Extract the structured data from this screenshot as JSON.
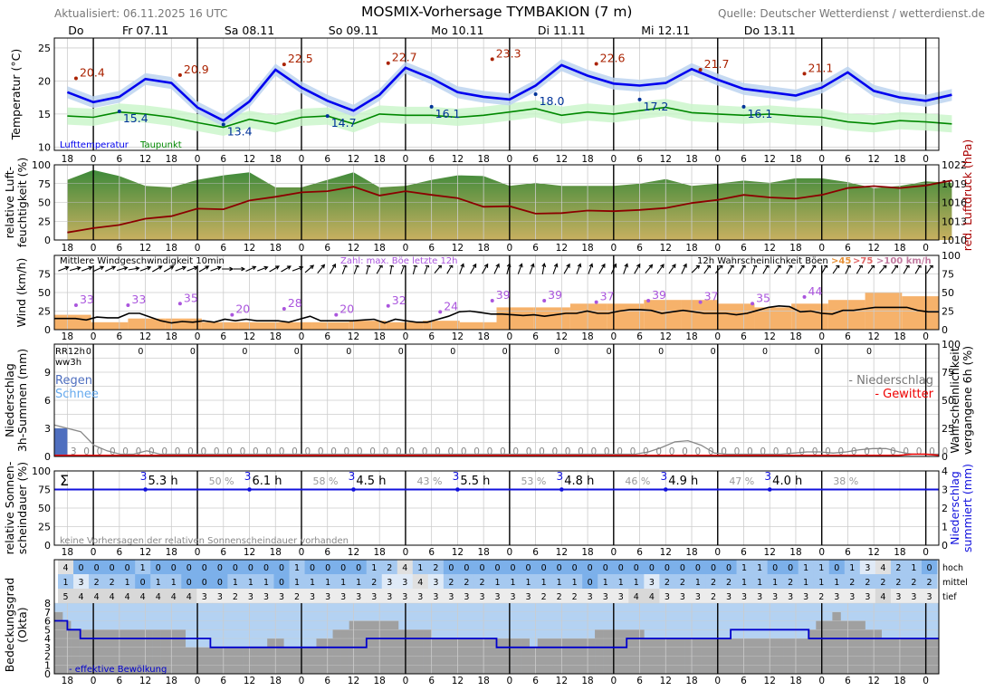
{
  "header": {
    "updated": "Aktualisiert: 06.11.2025 16 UTC",
    "title": "MOSMIX-Vorhersage TYMBAKION (7 m)",
    "source": "Quelle: Deutscher Wetterdienst / wetterdienst.de"
  },
  "days": [
    "Do",
    "Fr 07.11",
    "Sa 08.11",
    "So 09.11",
    "Mo 10.11",
    "Di 11.11",
    "Mi 12.11",
    "Do 13.11"
  ],
  "hour_ticks": [
    "18",
    "0",
    "6",
    "12",
    "18",
    "0",
    "6",
    "12",
    "18",
    "0",
    "6",
    "12",
    "18",
    "0",
    "6",
    "12",
    "18",
    "0",
    "6",
    "12",
    "18",
    "0",
    "6",
    "12",
    "18",
    "0",
    "6",
    "12",
    "18",
    "0",
    "6",
    "12",
    "18",
    "0"
  ],
  "colors": {
    "temperature": "#0000ee",
    "dewpoint": "#008800",
    "pressure": "#8b0000",
    "gust_label": "#aa55dd",
    "max_label": "#aa2200",
    "min_label": "#003399",
    "rain": "#4f6fbf",
    "snow": "#66aaee",
    "thunder": "#ee0000",
    "cloud_blue": "#b4d2f2",
    "cloud_gray": "#a0a0a0"
  },
  "chart_data": [
    {
      "type": "line",
      "panel": "temperature",
      "ylabel": "Temperatur (°C)",
      "yticks": [
        10,
        15,
        20,
        25
      ],
      "ylim": [
        9.5,
        26.5
      ],
      "x_hours": [
        -6,
        0,
        6,
        12,
        18,
        24,
        30,
        36,
        42,
        48,
        54,
        60,
        66,
        72,
        78,
        84,
        90,
        96,
        102,
        108,
        114,
        120,
        126,
        132,
        138,
        144,
        150,
        156,
        162,
        168,
        174,
        180,
        186,
        192,
        198
      ],
      "legend": [
        "Lufttemperatur",
        "Taupunkt"
      ],
      "series": [
        {
          "name": "Lufttemperatur",
          "values": [
            18.3,
            16.8,
            17.6,
            20.3,
            19.7,
            16.0,
            14.0,
            16.9,
            21.7,
            19.0,
            17.0,
            15.5,
            17.9,
            22.0,
            20.4,
            18.3,
            17.6,
            17.2,
            19.3,
            22.4,
            20.8,
            19.6,
            19.3,
            19.7,
            21.8,
            20.2,
            18.8,
            18.3,
            17.8,
            19.0,
            21.3,
            18.5,
            17.5,
            17.0,
            17.9
          ]
        },
        {
          "name": "Taupunkt",
          "values": [
            14.7,
            14.5,
            15.3,
            15.0,
            14.5,
            13.7,
            13.0,
            14.2,
            13.5,
            14.5,
            14.7,
            13.5,
            15.0,
            14.8,
            14.8,
            14.5,
            14.8,
            15.3,
            15.8,
            14.8,
            15.3,
            15.0,
            15.5,
            16.0,
            15.2,
            15.0,
            14.8,
            15.0,
            14.7,
            14.5,
            13.8,
            13.5,
            14.0,
            13.8,
            13.5
          ]
        }
      ],
      "annotations": [
        {
          "x": -4,
          "y": 20.4,
          "label": "20.4",
          "kind": "max"
        },
        {
          "x": 20,
          "y": 20.9,
          "label": "20.9",
          "kind": "max"
        },
        {
          "x": 44,
          "y": 22.5,
          "label": "22.5",
          "kind": "max"
        },
        {
          "x": 68,
          "y": 22.7,
          "label": "22.7",
          "kind": "max"
        },
        {
          "x": 92,
          "y": 23.3,
          "label": "23.3",
          "kind": "max"
        },
        {
          "x": 116,
          "y": 22.6,
          "label": "22.6",
          "kind": "max"
        },
        {
          "x": 140,
          "y": 21.7,
          "label": "21.7",
          "kind": "max"
        },
        {
          "x": 164,
          "y": 21.1,
          "label": "21.1",
          "kind": "max"
        },
        {
          "x": 6,
          "y": 15.4,
          "label": "15.4",
          "kind": "min"
        },
        {
          "x": 30,
          "y": 13.4,
          "label": "13.4",
          "kind": "min"
        },
        {
          "x": 54,
          "y": 14.7,
          "label": "14.7",
          "kind": "min"
        },
        {
          "x": 78,
          "y": 16.1,
          "label": "16.1",
          "kind": "min"
        },
        {
          "x": 102,
          "y": 18.0,
          "label": "18.0",
          "kind": "min"
        },
        {
          "x": 126,
          "y": 17.2,
          "label": "17.2",
          "kind": "min"
        },
        {
          "x": 150,
          "y": 16.1,
          "label": "16.1",
          "kind": "min"
        }
      ]
    },
    {
      "type": "area",
      "panel": "humidity_pressure",
      "ylabel": "relative Luft-\nfeuchtigkeit (%)",
      "y2label": "red. Luftdruck (hPa)",
      "yticks": [
        0,
        25,
        50,
        75,
        100
      ],
      "y2ticks": [
        1010,
        1013,
        1016,
        1019,
        1022
      ],
      "x_hours": [
        -6,
        0,
        6,
        12,
        18,
        24,
        30,
        36,
        42,
        48,
        54,
        60,
        66,
        72,
        78,
        84,
        90,
        96,
        102,
        108,
        114,
        120,
        126,
        132,
        138,
        144,
        150,
        156,
        162,
        168,
        174,
        180,
        186,
        192,
        198
      ],
      "series": [
        {
          "name": "relative Luftfeuchtigkeit",
          "values": [
            80,
            93,
            85,
            72,
            70,
            80,
            86,
            90,
            70,
            70,
            80,
            90,
            70,
            72,
            80,
            86,
            85,
            72,
            76,
            72,
            72,
            72,
            75,
            81,
            72,
            75,
            79,
            76,
            82,
            82,
            77,
            69,
            72,
            78,
            76
          ]
        },
        {
          "name": "red. Luftdruck",
          "values": [
            1011.2,
            1011.9,
            1012.4,
            1013.4,
            1013.8,
            1015.0,
            1014.9,
            1016.3,
            1016.9,
            1017.6,
            1017.8,
            1018.5,
            1017.1,
            1017.8,
            1017.2,
            1016.7,
            1015.3,
            1015.4,
            1014.2,
            1014.3,
            1014.7,
            1014.6,
            1014.8,
            1015.1,
            1015.9,
            1016.4,
            1017.2,
            1016.8,
            1016.6,
            1017.2,
            1018.3,
            1018.6,
            1018.3,
            1018.7,
            1019.5
          ]
        }
      ]
    },
    {
      "type": "bar",
      "panel": "wind",
      "ylabel": "Wind (km/h)",
      "yticks": [
        0,
        25,
        50,
        75
      ],
      "y2ticks": [
        0,
        25,
        50,
        75,
        100
      ],
      "ylim": [
        0,
        100
      ],
      "mean_wind_label": "Mittlere Windgeschwindigkeit 10min",
      "gust_note": "Zahl: max. Böe letzte 12h",
      "prob_label": "12h Wahrscheinlichkeit Böen",
      "thresholds": [
        ">45",
        ">75",
        ">100 km/h"
      ],
      "gust_max": [
        {
          "x": -4,
          "value": 33
        },
        {
          "x": 8,
          "value": 33
        },
        {
          "x": 20,
          "value": 35
        },
        {
          "x": 32,
          "value": 20
        },
        {
          "x": 44,
          "value": 28
        },
        {
          "x": 56,
          "value": 20
        },
        {
          "x": 68,
          "value": 32
        },
        {
          "x": 80,
          "value": 24
        },
        {
          "x": 92,
          "value": 39
        },
        {
          "x": 104,
          "value": 39
        },
        {
          "x": 116,
          "value": 37
        },
        {
          "x": 128,
          "value": 39
        },
        {
          "x": 140,
          "value": 37
        },
        {
          "x": 152,
          "value": 35
        },
        {
          "x": 164,
          "value": 44
        }
      ],
      "gust_prob_45": [
        20,
        10,
        15,
        15,
        10,
        10,
        10,
        10,
        12,
        10,
        12,
        10,
        30,
        30,
        35,
        35,
        40,
        40,
        35,
        30,
        35,
        40,
        50,
        45
      ],
      "mean_wind": [
        15,
        15,
        15,
        13,
        17,
        16,
        16,
        22,
        22,
        17,
        12,
        9,
        11,
        10,
        12,
        10,
        14,
        12,
        14,
        12,
        12,
        12,
        10,
        14,
        18,
        12,
        12,
        12,
        12,
        13,
        14,
        9,
        14,
        12,
        10,
        10,
        14,
        18,
        24,
        25,
        23,
        21,
        21,
        20,
        19,
        20,
        18,
        20,
        22,
        22,
        25,
        22,
        22,
        25,
        27,
        27,
        26,
        22,
        24,
        26,
        24,
        22,
        22,
        22,
        20,
        22,
        26,
        30,
        32,
        31,
        24,
        25,
        22,
        21,
        26,
        26,
        28,
        30,
        30,
        30,
        30,
        26,
        24,
        24
      ],
      "wind_dir": [
        250,
        255,
        250,
        245,
        245,
        255,
        260,
        250,
        240,
        240,
        250,
        250,
        240,
        250,
        270,
        270,
        245,
        250,
        240,
        240,
        250,
        230,
        220,
        210,
        200,
        200,
        195,
        210,
        190,
        200,
        195,
        200,
        220,
        210,
        200,
        210,
        210,
        205,
        195,
        200,
        200,
        190,
        200,
        210,
        200,
        200,
        210,
        205,
        200,
        210,
        220,
        215,
        215,
        205,
        225,
        215,
        220,
        210,
        210,
        200,
        210,
        215,
        210,
        215,
        210,
        210,
        215,
        205,
        210,
        215,
        220,
        215,
        210,
        210,
        215
      ]
    },
    {
      "type": "bar",
      "panel": "precipitation",
      "ylabel": "Niederschlag\n3h-Summen (mm)",
      "y2label": "Wahrscheinlichkeit\nvergangene 6h (%)",
      "yticks": [
        0,
        3,
        6,
        9
      ],
      "y2ticks": [
        0,
        25,
        50,
        75,
        100
      ],
      "labels": {
        "rr": "RR12h",
        "ww": "ww3h",
        "rain": "Regen",
        "snow": "Schnee",
        "precip": "- Niederschlag",
        "thunder": "- Gewitter"
      },
      "rr12": [
        "0",
        "0",
        "0",
        "0",
        "0",
        "0",
        "0",
        "0",
        "0",
        "0",
        "0",
        "0",
        "0",
        "0",
        "0",
        "0"
      ],
      "rr3": [
        3,
        0,
        0,
        0,
        0,
        0,
        0,
        0,
        0,
        0,
        0,
        0,
        0,
        0,
        0,
        0,
        0,
        0,
        0,
        0,
        0,
        0,
        0,
        0,
        0,
        0,
        0,
        0,
        0,
        0,
        0,
        0,
        0,
        0,
        0,
        0,
        0,
        0,
        0,
        0,
        0,
        0,
        0,
        0,
        0,
        0,
        0,
        0,
        0,
        0,
        0,
        0,
        0,
        0,
        0,
        0,
        0,
        0,
        0,
        0,
        0,
        0,
        0,
        0,
        0,
        0,
        0,
        0
      ],
      "prob_precip": [
        28,
        25,
        22,
        10,
        5,
        2,
        2,
        5,
        2,
        2,
        2,
        2,
        2,
        2,
        2,
        2,
        2,
        2,
        2,
        2,
        2,
        2,
        2,
        2,
        2,
        2,
        2,
        2,
        2,
        2,
        2,
        2,
        2,
        2,
        2,
        2,
        2,
        2,
        2,
        2,
        2,
        2,
        2,
        2,
        2,
        4,
        8,
        13,
        14,
        10,
        3,
        2,
        2,
        2,
        2,
        2,
        3,
        4,
        4,
        3,
        4,
        6,
        7,
        7,
        4,
        2,
        2,
        2
      ],
      "prob_thunder": [
        1,
        1,
        1,
        1,
        1,
        1,
        1,
        1,
        1,
        1,
        1,
        1,
        1,
        1,
        1,
        1,
        1,
        1,
        1,
        1,
        1,
        1,
        1,
        1,
        1,
        1,
        1,
        1,
        1,
        1,
        1,
        1,
        1,
        1,
        1,
        1,
        1,
        1,
        1,
        1,
        1,
        1,
        1,
        1,
        1,
        1,
        1,
        1,
        1,
        1,
        1,
        1,
        1,
        1,
        1,
        1,
        1,
        1,
        1,
        1,
        1,
        1,
        1,
        1,
        1,
        2,
        2,
        1
      ]
    },
    {
      "type": "line",
      "panel": "sunshine",
      "ylabel": "relative Sonnen-\nscheindauer (%)",
      "y2label": "Niederschlag\nsummiert (mm)",
      "yticks": [
        0,
        25,
        50,
        75,
        100
      ],
      "y2ticks": [
        0,
        1,
        2,
        3,
        4
      ],
      "sigma": "Σ",
      "note": "keine Vorhersagen der relativen Sonnenscheindauer vorhanden",
      "daily": [
        {
          "x": 12,
          "sum": "3",
          "sun": "5.3 h",
          "pct": "50 %"
        },
        {
          "x": 36,
          "sum": "3",
          "sun": "6.1 h",
          "pct": "58 %"
        },
        {
          "x": 60,
          "sum": "3",
          "sun": "4.5 h",
          "pct": "43 %"
        },
        {
          "x": 84,
          "sum": "3",
          "sun": "5.5 h",
          "pct": "53 %"
        },
        {
          "x": 108,
          "sum": "3",
          "sun": "4.8 h",
          "pct": "46 %"
        },
        {
          "x": 132,
          "sum": "3",
          "sun": "4.9 h",
          "pct": "47 %"
        },
        {
          "x": 156,
          "sum": "3",
          "sun": "4.0 h",
          "pct": "38 %"
        }
      ],
      "cumulative_mm": 3
    },
    {
      "type": "heatmap",
      "panel": "clouds",
      "ylabel": "Bedeckungsgrad\n(Okta)",
      "row_labels": [
        "hoch",
        "mittel",
        "tief"
      ],
      "yticks": [
        0,
        1,
        2,
        3,
        4,
        5,
        6,
        7,
        8
      ],
      "legend": "- effektive Bewölkung",
      "hoch": [
        4,
        0,
        0,
        0,
        0,
        1,
        0,
        0,
        0,
        0,
        0,
        0,
        0,
        0,
        0,
        1,
        0,
        0,
        0,
        0,
        1,
        2,
        4,
        1,
        2,
        0,
        0,
        0,
        0,
        0,
        0,
        0,
        0,
        0,
        0,
        0,
        0,
        0,
        0,
        0,
        0,
        0,
        0,
        0,
        1,
        1,
        0,
        0,
        1,
        1,
        0,
        1,
        3,
        4,
        2,
        1,
        0
      ],
      "mittel": [
        1,
        3,
        2,
        2,
        1,
        0,
        1,
        1,
        0,
        0,
        0,
        1,
        1,
        1,
        0,
        1,
        1,
        1,
        1,
        1,
        2,
        3,
        3,
        4,
        3,
        2,
        2,
        2,
        1,
        1,
        1,
        1,
        1,
        1,
        0,
        1,
        1,
        1,
        3,
        2,
        2,
        1,
        2,
        2,
        1,
        1,
        1,
        2,
        1,
        1,
        1,
        2,
        2,
        2,
        2,
        2,
        2
      ],
      "tief": [
        5,
        4,
        4,
        4,
        4,
        4,
        4,
        4,
        4,
        3,
        3,
        2,
        3,
        3,
        3,
        2,
        3,
        3,
        3,
        3,
        3,
        3,
        3,
        3,
        3,
        3,
        3,
        3,
        3,
        3,
        3,
        2,
        2,
        2,
        3,
        3,
        3,
        4,
        4,
        3,
        3,
        3,
        2,
        3,
        3,
        3,
        3,
        3,
        3,
        2,
        3,
        3,
        3,
        4,
        3,
        3,
        3
      ],
      "total": [
        7,
        6,
        5,
        5,
        5,
        5,
        5,
        5,
        5,
        5,
        5,
        5,
        5,
        5,
        5,
        5,
        3,
        3,
        3,
        3,
        3,
        3,
        3,
        3,
        3,
        3,
        4,
        4,
        3,
        3,
        3,
        3,
        4,
        4,
        5,
        5,
        6,
        6,
        6,
        6,
        6,
        6,
        5,
        5,
        5,
        5,
        4,
        4,
        4,
        4,
        4,
        4,
        4,
        4,
        4,
        4,
        4,
        4,
        3,
        4,
        4,
        4,
        4,
        4,
        4,
        4,
        5,
        5,
        5,
        5,
        5,
        5,
        4,
        4,
        4,
        4,
        4,
        4,
        4,
        4,
        4,
        4,
        4,
        4,
        4,
        4,
        4,
        4,
        4,
        4,
        4,
        4,
        5,
        6,
        6,
        7,
        6,
        6,
        6,
        5,
        5,
        4,
        4,
        4,
        4,
        4,
        4,
        4
      ],
      "effective": [
        6,
        5,
        4,
        4,
        4,
        4,
        4,
        4,
        4,
        4,
        4,
        4,
        3,
        3,
        3,
        3,
        3,
        3,
        3,
        3,
        3,
        3,
        3,
        3,
        4,
        4,
        4,
        4,
        4,
        4,
        4,
        4,
        4,
        4,
        3,
        3,
        3,
        3,
        3,
        3,
        3,
        3,
        3,
        3,
        4,
        4,
        4,
        4,
        4,
        4,
        4,
        4,
        5,
        5,
        5,
        5,
        5,
        5,
        4,
        4,
        4,
        4,
        4,
        4,
        4,
        4,
        4,
        4
      ]
    }
  ]
}
